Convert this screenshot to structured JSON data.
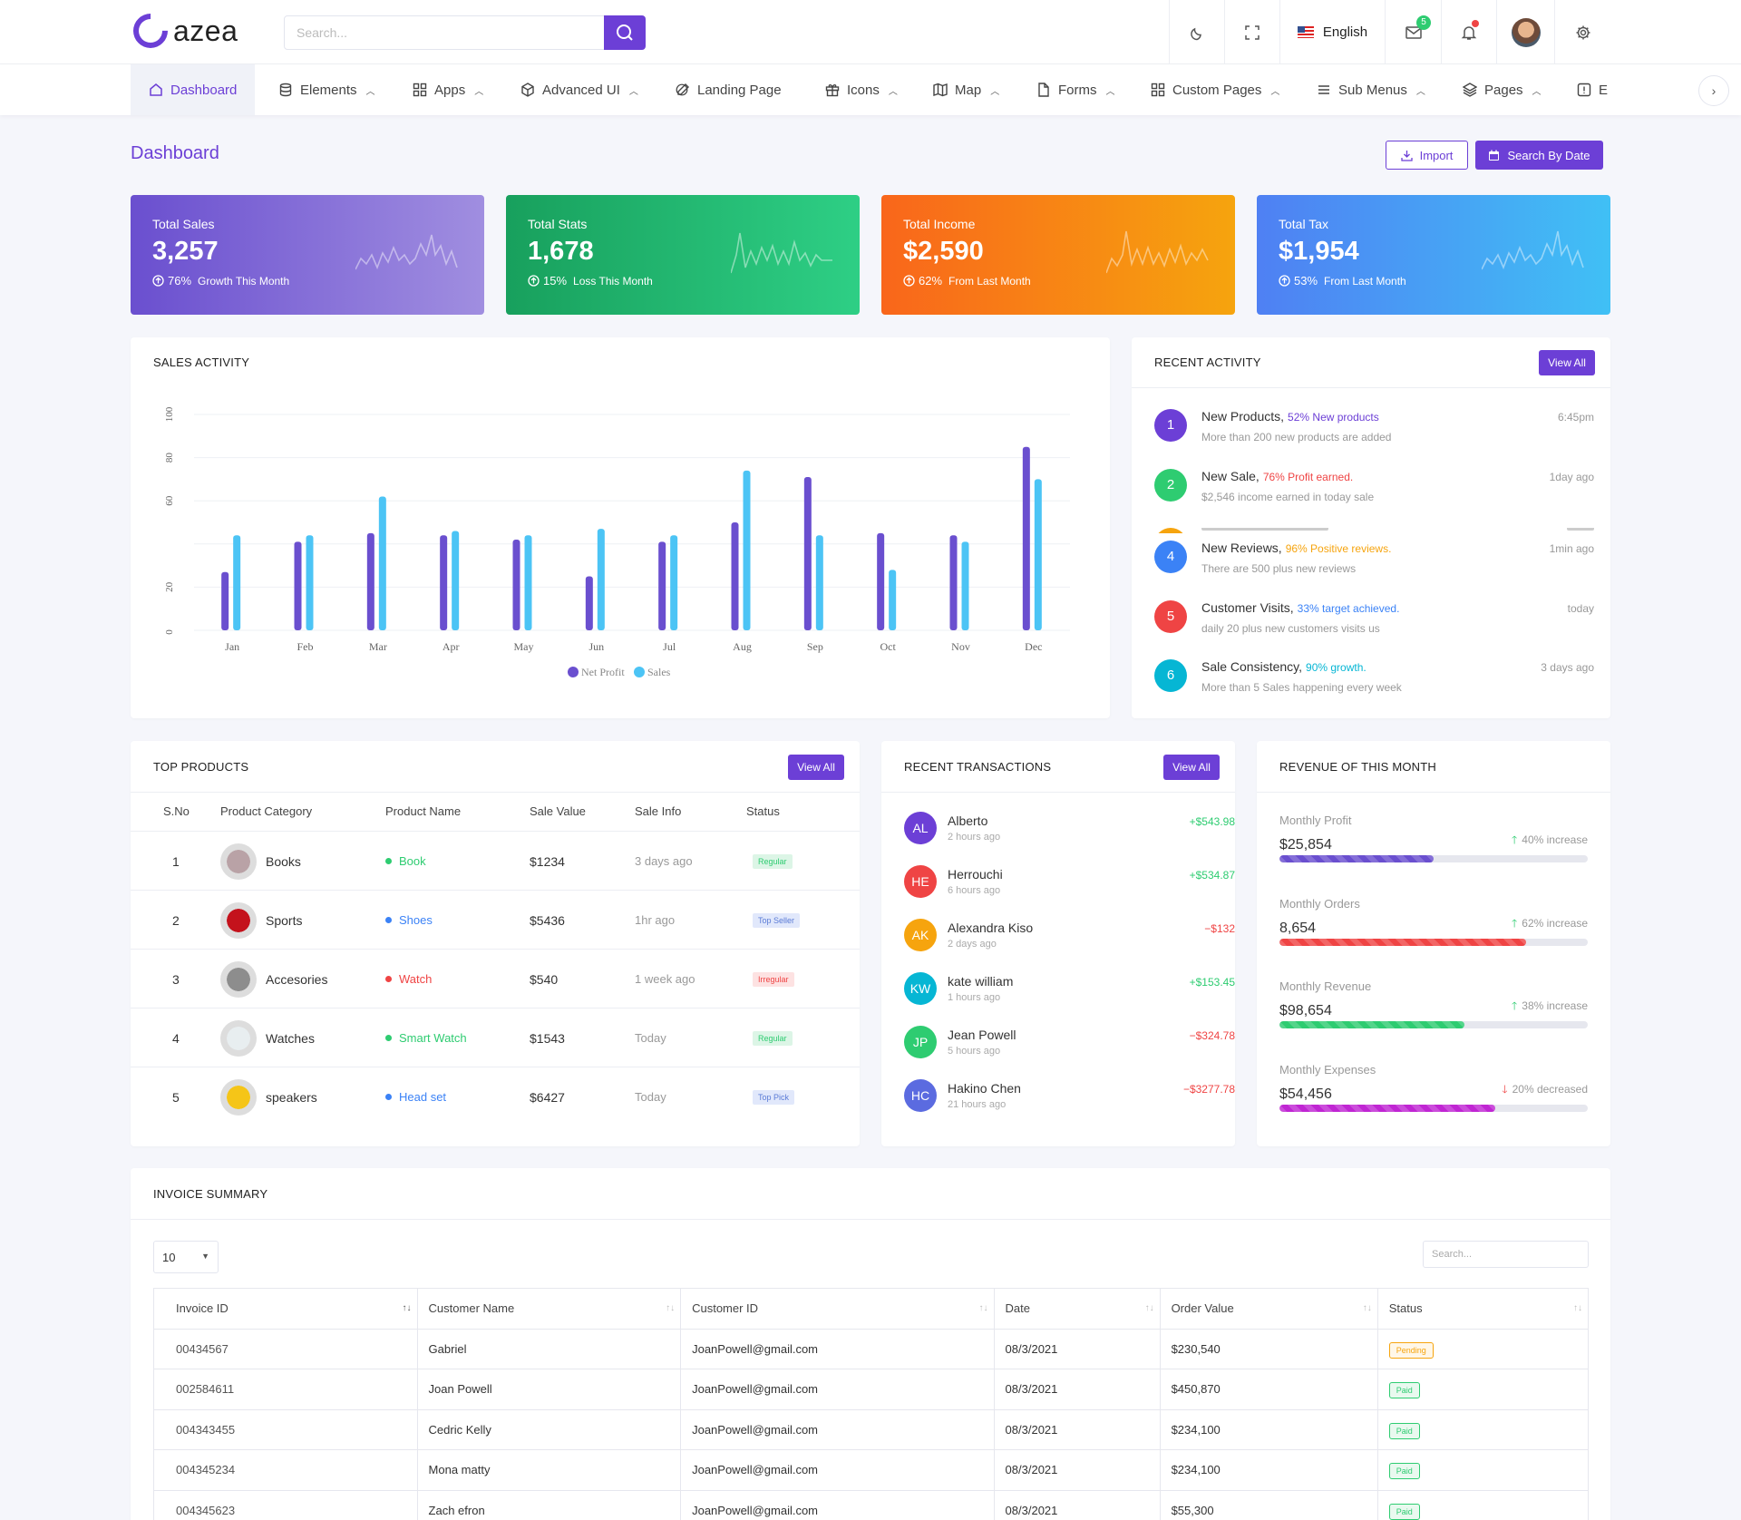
{
  "header": {
    "logo_text": "azea",
    "search_placeholder": "Search...",
    "language": "English",
    "mail_badge": "5"
  },
  "nav": {
    "items": [
      {
        "label": "Dashboard"
      },
      {
        "label": "Elements"
      },
      {
        "label": "Apps"
      },
      {
        "label": "Advanced UI"
      },
      {
        "label": "Landing Page"
      },
      {
        "label": "Icons"
      },
      {
        "label": "Map"
      },
      {
        "label": "Forms"
      },
      {
        "label": "Custom Pages"
      },
      {
        "label": "Sub Menus"
      },
      {
        "label": "Pages"
      },
      {
        "label": "E"
      }
    ]
  },
  "page": {
    "title": "Dashboard",
    "import_label": "Import",
    "search_date_label": "Search By Date"
  },
  "stats": [
    {
      "label": "Total Sales",
      "value": "3,257",
      "pct": "76%",
      "note": "Growth This Month",
      "colors": [
        "#6a4fcf",
        "#a08ee0"
      ]
    },
    {
      "label": "Total Stats",
      "value": "1,678",
      "pct": "15%",
      "note": "Loss This Month",
      "colors": [
        "#18a05d",
        "#2ecf85"
      ]
    },
    {
      "label": "Total Income",
      "value": "$2,590",
      "pct": "62%",
      "note": "From Last Month",
      "colors": [
        "#f9661b",
        "#f6a40e"
      ]
    },
    {
      "label": "Total Tax",
      "value": "$1,954",
      "pct": "53%",
      "note": "From Last Month",
      "colors": [
        "#4f80f3",
        "#40c0f5"
      ]
    }
  ],
  "sales_activity": {
    "title": "SALES ACTIVITY"
  },
  "chart_data": {
    "type": "bar",
    "categories": [
      "Jan",
      "Feb",
      "Mar",
      "Apr",
      "May",
      "Jun",
      "Jul",
      "Aug",
      "Sep",
      "Oct",
      "Nov",
      "Dec"
    ],
    "series": [
      {
        "name": "Net Profit",
        "color": "#6a4fcf",
        "values": [
          27,
          41,
          45,
          44,
          42,
          25,
          41,
          50,
          71,
          45,
          44,
          85
        ]
      },
      {
        "name": "Sales",
        "color": "#4cc4f5",
        "values": [
          44,
          44,
          62,
          46,
          44,
          47,
          44,
          74,
          44,
          28,
          41,
          70
        ]
      }
    ],
    "y_ticks": [
      "0",
      "20",
      "60",
      "80",
      "100"
    ],
    "ylim": [
      0,
      100
    ],
    "grid": true,
    "legend_position": "bottom"
  },
  "recent_activity": {
    "title": "RECENT ACTIVITY",
    "view_all": "View All",
    "items": [
      {
        "num": "1",
        "title": "New Products,",
        "hl": "52% New products",
        "hl_color": "#6c3fd6",
        "desc": "More than 200 new products are added",
        "time": "6:45pm",
        "color": "#6c3fd6"
      },
      {
        "num": "2",
        "title": "New Sale,",
        "hl": "76% Profit earned.",
        "hl_color": "#ef4444",
        "desc": "$2,546 income earned in today sale",
        "time": "1day ago",
        "color": "#2ecc71"
      },
      {
        "num": "4",
        "title": "New Reviews,",
        "hl": "96% Positive reviews.",
        "hl_color": "#f6a40e",
        "desc": "There are 500 plus new reviews",
        "time": "1min ago",
        "color": "#3b82f6"
      },
      {
        "num": "5",
        "title": "Customer Visits,",
        "hl": "33% target achieved.",
        "hl_color": "#3b82f6",
        "desc": "daily 20 plus new customers visits us",
        "time": "today",
        "color": "#ef4444"
      },
      {
        "num": "6",
        "title": "Sale Consistency,",
        "hl": "90% growth.",
        "hl_color": "#06b6d4",
        "desc": "More than 5 Sales happening every week",
        "time": "3 days ago",
        "color": "#06b6d4"
      }
    ]
  },
  "top_products": {
    "title": "TOP PRODUCTS",
    "view_all": "View All",
    "headers": [
      "S.No",
      "Product Category",
      "Product Name",
      "Sale Value",
      "Sale Info",
      "Status"
    ],
    "rows": [
      {
        "no": "1",
        "category": "Books",
        "name": "Book",
        "name_color": "#2ecc71",
        "value": "$1234",
        "info": "3 days ago",
        "status": "Regular",
        "status_bg": "#dcf5e6",
        "status_fg": "#2ecc71",
        "img": "#b9a2a6"
      },
      {
        "no": "2",
        "category": "Sports",
        "name": "Shoes",
        "name_color": "#3b82f6",
        "value": "$5436",
        "info": "1hr ago",
        "status": "Top Seller",
        "status_bg": "#e1e8fb",
        "status_fg": "#5b7bd6",
        "img": "#c4121c"
      },
      {
        "no": "3",
        "category": "Accesories",
        "name": "Watch",
        "name_color": "#ef4444",
        "value": "$540",
        "info": "1 week ago",
        "status": "Irregular",
        "status_bg": "#fde2e2",
        "status_fg": "#ef4444",
        "img": "#8d8d8d"
      },
      {
        "no": "4",
        "category": "Watches",
        "name": "Smart Watch",
        "name_color": "#2ecc71",
        "value": "$1543",
        "info": "Today",
        "status": "Regular",
        "status_bg": "#dcf5e6",
        "status_fg": "#2ecc71",
        "img": "#e8eef0"
      },
      {
        "no": "5",
        "category": "speakers",
        "name": "Head set",
        "name_color": "#3b82f6",
        "value": "$6427",
        "info": "Today",
        "status": "Top Pick",
        "status_bg": "#e1e8fb",
        "status_fg": "#5b7bd6",
        "img": "#f5c518"
      }
    ]
  },
  "transactions": {
    "title": "RECENT TRANSACTIONS",
    "view_all": "View All",
    "items": [
      {
        "initials": "AL",
        "name": "Alberto",
        "time": "2 hours ago",
        "amount": "+$543.98",
        "color": "#6c3fd6",
        "amt_color": "#2ecc71"
      },
      {
        "initials": "HE",
        "name": "Herrouchi",
        "time": "6 hours ago",
        "amount": "+$534.87",
        "color": "#ef4444",
        "amt_color": "#2ecc71"
      },
      {
        "initials": "AK",
        "name": "Alexandra Kiso",
        "time": "2 days ago",
        "amount": "−$132",
        "color": "#f6a40e",
        "amt_color": "#ef4444"
      },
      {
        "initials": "KW",
        "name": "kate william",
        "time": "1 hours ago",
        "amount": "+$153.45",
        "color": "#06b6d4",
        "amt_color": "#2ecc71"
      },
      {
        "initials": "JP",
        "name": "Jean Powell",
        "time": "5 hours ago",
        "amount": "−$324.78",
        "color": "#2ecc71",
        "amt_color": "#ef4444"
      },
      {
        "initials": "HC",
        "name": "Hakino Chen",
        "time": "21 hours ago",
        "amount": "−$3277.78",
        "color": "#5b6be0",
        "amt_color": "#ef4444"
      }
    ]
  },
  "revenue": {
    "title": "REVENUE OF THIS MONTH",
    "items": [
      {
        "label": "Monthly Profit",
        "value": "$25,854",
        "change": "40% increase",
        "arrow": "up",
        "progress": 0.5,
        "color": "#6a4fcf"
      },
      {
        "label": "Monthly Orders",
        "value": "8,654",
        "change": "62% increase",
        "arrow": "up",
        "progress": 0.8,
        "color": "#ef4444"
      },
      {
        "label": "Monthly Revenue",
        "value": "$98,654",
        "change": "38% increase",
        "arrow": "up",
        "progress": 0.6,
        "color": "#2ecc71"
      },
      {
        "label": "Monthly Expenses",
        "value": "$54,456",
        "change": "20% decreased",
        "arrow": "down",
        "progress": 0.7,
        "color": "#c026d3"
      }
    ]
  },
  "invoice": {
    "title": "INVOICE SUMMARY",
    "page_size": "10",
    "search_placeholder": "Search...",
    "headers": [
      "Invoice ID",
      "Customer Name",
      "Customer ID",
      "Date",
      "Order Value",
      "Status"
    ],
    "rows": [
      {
        "id": "00434567",
        "name": "Gabriel",
        "cid": "JoanPowell@gmail.com",
        "date": "08/3/2021",
        "value": "$230,540",
        "status": "Pending"
      },
      {
        "id": "002584611",
        "name": "Joan Powell",
        "cid": "JoanPowell@gmail.com",
        "date": "08/3/2021",
        "value": "$450,870",
        "status": "Paid"
      },
      {
        "id": "004343455",
        "name": "Cedric Kelly",
        "cid": "JoanPowell@gmail.com",
        "date": "08/3/2021",
        "value": "$234,100",
        "status": "Paid"
      },
      {
        "id": "004345234",
        "name": "Mona matty",
        "cid": "JoanPowell@gmail.com",
        "date": "08/3/2021",
        "value": "$234,100",
        "status": "Paid"
      },
      {
        "id": "004345623",
        "name": "Zach efron",
        "cid": "JoanPowell@gmail.com",
        "date": "08/3/2021",
        "value": "$55,300",
        "status": "Paid"
      }
    ]
  }
}
